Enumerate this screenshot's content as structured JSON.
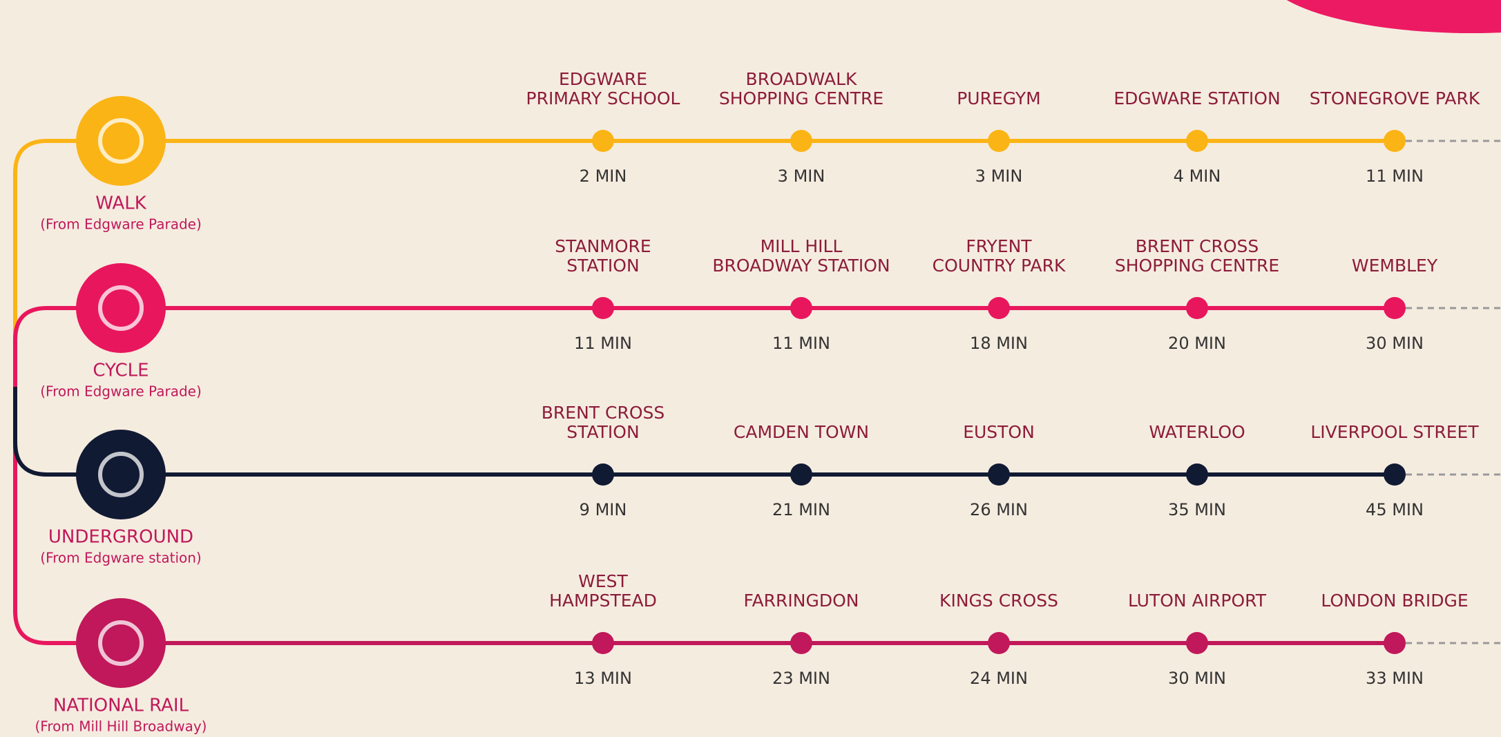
{
  "modes": [
    {
      "name": "WALK",
      "from": "(From Edgware Parade)",
      "stops": [
        {
          "name": [
            "EDGWARE",
            "PRIMARY SCHOOL"
          ],
          "time": "2 MIN"
        },
        {
          "name": [
            "BROADWALK",
            "SHOPPING CENTRE"
          ],
          "time": "3 MIN"
        },
        {
          "name": [
            "PUREGYM"
          ],
          "time": "3 MIN"
        },
        {
          "name": [
            "EDGWARE STATION"
          ],
          "time": "4 MIN"
        },
        {
          "name": [
            "STONEGROVE PARK"
          ],
          "time": "11 MIN"
        }
      ]
    },
    {
      "name": "CYCLE",
      "from": "(From Edgware Parade)",
      "stops": [
        {
          "name": [
            "STANMORE",
            "STATION"
          ],
          "time": "11 MIN"
        },
        {
          "name": [
            "MILL HILL",
            "BROADWAY STATION"
          ],
          "time": "11 MIN"
        },
        {
          "name": [
            "FRYENT",
            "COUNTRY PARK"
          ],
          "time": "18 MIN"
        },
        {
          "name": [
            "BRENT CROSS",
            "SHOPPING CENTRE"
          ],
          "time": "20 MIN"
        },
        {
          "name": [
            "WEMBLEY"
          ],
          "time": "30 MIN"
        }
      ]
    },
    {
      "name": "UNDERGROUND",
      "from": "(From Edgware station)",
      "stops": [
        {
          "name": [
            "BRENT CROSS",
            "STATION"
          ],
          "time": "9 MIN"
        },
        {
          "name": [
            "CAMDEN TOWN"
          ],
          "time": "21 MIN"
        },
        {
          "name": [
            "EUSTON"
          ],
          "time": "26 MIN"
        },
        {
          "name": [
            "WATERLOO"
          ],
          "time": "35 MIN"
        },
        {
          "name": [
            "LIVERPOOL STREET"
          ],
          "time": "45 MIN"
        }
      ]
    },
    {
      "name": "NATIONAL RAIL",
      "from": "(From Mill Hill Broadway)",
      "stops": [
        {
          "name": [
            "WEST",
            "HAMPSTEAD"
          ],
          "time": "13 MIN"
        },
        {
          "name": [
            "FARRINGDON"
          ],
          "time": "23 MIN"
        },
        {
          "name": [
            "KINGS CROSS"
          ],
          "time": "24 MIN"
        },
        {
          "name": [
            "LUTON AIRPORT"
          ],
          "time": "30 MIN"
        },
        {
          "name": [
            "LONDON BRIDGE"
          ],
          "time": "33 MIN"
        }
      ]
    }
  ]
}
